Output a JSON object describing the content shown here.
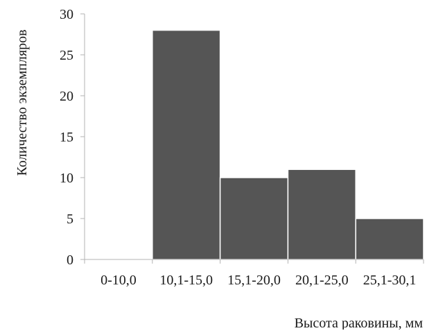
{
  "chart_data": {
    "type": "bar",
    "title": "",
    "xlabel": "Высота раковины, мм",
    "ylabel": "Количество экземпляров",
    "categories": [
      "0-10,0",
      "10,1-15,0",
      "15,1-20,0",
      "20,1-25,0",
      "25,1-30,1"
    ],
    "values": [
      0,
      28,
      10,
      11,
      5
    ],
    "ylim": [
      0,
      30
    ],
    "yticks": [
      0,
      5,
      10,
      15,
      20,
      25,
      30
    ],
    "grid": false,
    "legend": "none",
    "bar_color": "#555555",
    "bar_edge_color": "#ffffff",
    "axis_color": "#b3b3b3"
  }
}
